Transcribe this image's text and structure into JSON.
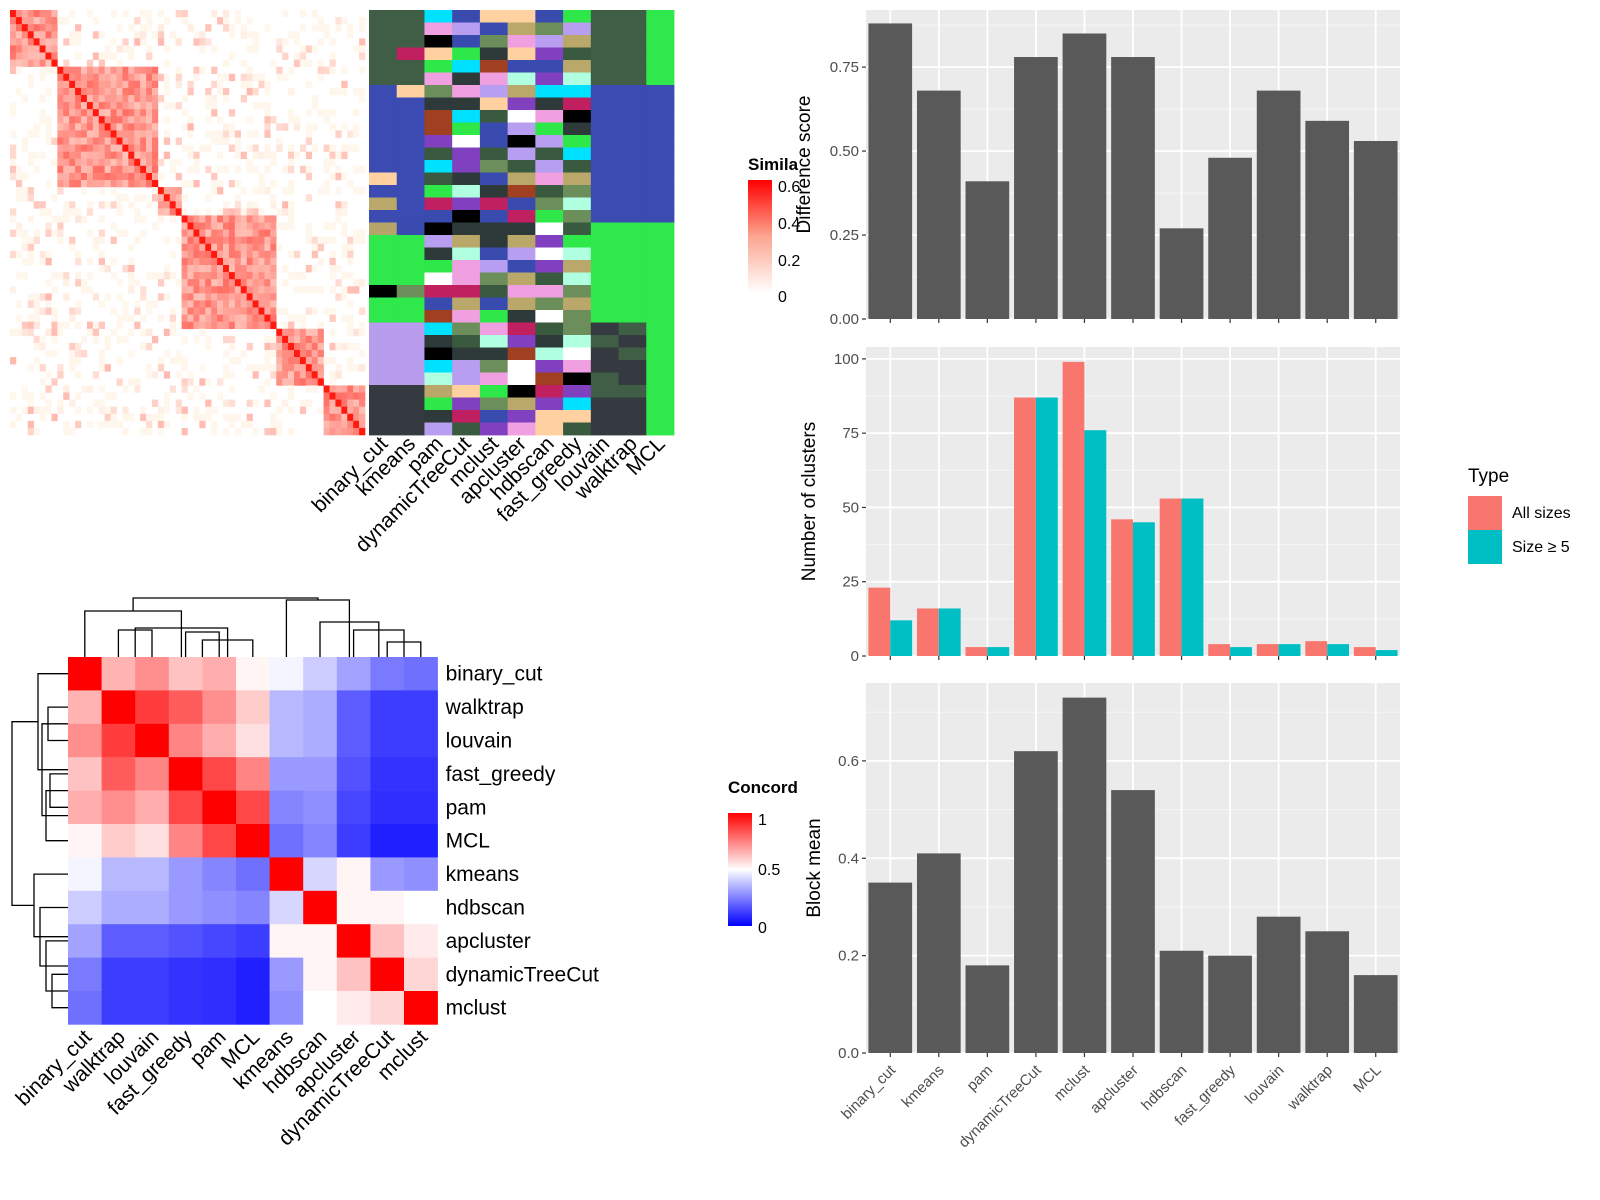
{
  "sim_legend": {
    "title": "Simila",
    "ticks": [
      "0.6",
      "0.4",
      "0.2",
      "0"
    ]
  },
  "conc_legend": {
    "title": "Concord",
    "ticks": [
      "1",
      "0.5",
      "0"
    ]
  },
  "type_legend": {
    "title": "Type",
    "items": [
      {
        "label": "All sizes",
        "color": "#f8766d"
      },
      {
        "label": "Size ≥ 5",
        "color": "#00bfc4"
      }
    ]
  },
  "chart_data": [
    {
      "type": "heatmap",
      "title": "",
      "columns": [
        "binary_cut",
        "kmeans",
        "pam",
        "dynamicTreeCut",
        "mclust",
        "apcluster",
        "hdbscan",
        "fast_greedy",
        "louvain",
        "walktrap",
        "MCL"
      ],
      "legend_title": "Simila",
      "legend_range": [
        0,
        0.6
      ],
      "legend_ticks": [
        0.6,
        0.4,
        0.2,
        0
      ]
    },
    {
      "type": "heatmap",
      "title": "",
      "rows": [
        "binary_cut",
        "walktrap",
        "louvain",
        "fast_greedy",
        "pam",
        "MCL",
        "kmeans",
        "hdbscan",
        "apcluster",
        "dynamicTreeCut",
        "mclust"
      ],
      "columns": [
        "binary_cut",
        "walktrap",
        "louvain",
        "fast_greedy",
        "pam",
        "MCL",
        "kmeans",
        "hdbscan",
        "apcluster",
        "dynamicTreeCut",
        "mclust"
      ],
      "values": [
        [
          1.0,
          0.65,
          0.72,
          0.62,
          0.66,
          0.52,
          0.48,
          0.4,
          0.32,
          0.24,
          0.22
        ],
        [
          0.65,
          1.0,
          0.88,
          0.82,
          0.72,
          0.6,
          0.36,
          0.34,
          0.18,
          0.12,
          0.12
        ],
        [
          0.72,
          0.88,
          1.0,
          0.74,
          0.66,
          0.56,
          0.36,
          0.34,
          0.18,
          0.12,
          0.12
        ],
        [
          0.62,
          0.82,
          0.74,
          1.0,
          0.86,
          0.74,
          0.3,
          0.3,
          0.16,
          0.1,
          0.1
        ],
        [
          0.66,
          0.72,
          0.66,
          0.86,
          1.0,
          0.86,
          0.26,
          0.28,
          0.14,
          0.09,
          0.09
        ],
        [
          0.52,
          0.6,
          0.56,
          0.74,
          0.86,
          1.0,
          0.22,
          0.26,
          0.12,
          0.06,
          0.06
        ],
        [
          0.48,
          0.36,
          0.36,
          0.3,
          0.26,
          0.22,
          1.0,
          0.42,
          0.52,
          0.3,
          0.28
        ],
        [
          0.4,
          0.34,
          0.34,
          0.3,
          0.28,
          0.26,
          0.42,
          1.0,
          0.52,
          0.52,
          0.5
        ],
        [
          0.32,
          0.18,
          0.18,
          0.16,
          0.14,
          0.12,
          0.52,
          0.52,
          1.0,
          0.62,
          0.54
        ],
        [
          0.24,
          0.12,
          0.12,
          0.1,
          0.09,
          0.06,
          0.3,
          0.52,
          0.62,
          1.0,
          0.58
        ],
        [
          0.22,
          0.12,
          0.12,
          0.1,
          0.09,
          0.06,
          0.28,
          0.5,
          0.54,
          0.58,
          1.0
        ]
      ],
      "legend_title": "Concord",
      "legend_range": [
        0,
        1
      ],
      "legend_ticks": [
        1,
        0.5,
        0
      ]
    },
    {
      "type": "bar",
      "categories": [
        "binary_cut",
        "kmeans",
        "pam",
        "dynamicTreeCut",
        "mclust",
        "apcluster",
        "hdbscan",
        "fast_greedy",
        "louvain",
        "walktrap",
        "MCL"
      ],
      "values": [
        0.88,
        0.68,
        0.41,
        0.78,
        0.85,
        0.78,
        0.27,
        0.48,
        0.68,
        0.59,
        0.53
      ],
      "ylabel": "Difference score",
      "xlabel": "",
      "ylim": [
        0,
        0.92
      ],
      "yticks": [
        "0.00",
        "0.25",
        "0.50",
        "0.75"
      ],
      "grid": true
    },
    {
      "type": "bar",
      "categories": [
        "binary_cut",
        "kmeans",
        "pam",
        "dynamicTreeCut",
        "mclust",
        "apcluster",
        "hdbscan",
        "fast_greedy",
        "louvain",
        "walktrap",
        "MCL"
      ],
      "series": [
        {
          "name": "All sizes",
          "values": [
            23,
            16,
            3,
            87,
            99,
            46,
            53,
            4,
            4,
            5,
            3
          ]
        },
        {
          "name": "Size ≥ 5",
          "values": [
            12,
            16,
            3,
            87,
            76,
            45,
            53,
            3,
            4,
            4,
            2
          ]
        }
      ],
      "ylabel": "Number of clusters",
      "xlabel": "",
      "ylim": [
        0,
        104
      ],
      "yticks": [
        "0",
        "25",
        "50",
        "75",
        "100"
      ],
      "legend_title": "Type",
      "legend": "right",
      "grid": true
    },
    {
      "type": "bar",
      "categories": [
        "binary_cut",
        "kmeans",
        "pam",
        "dynamicTreeCut",
        "mclust",
        "apcluster",
        "hdbscan",
        "fast_greedy",
        "louvain",
        "walktrap",
        "MCL"
      ],
      "values": [
        0.35,
        0.41,
        0.18,
        0.62,
        0.73,
        0.54,
        0.21,
        0.2,
        0.28,
        0.25,
        0.16
      ],
      "ylabel": "Block mean",
      "xlabel": "",
      "ylim": [
        0,
        0.76
      ],
      "yticks": [
        "0.0",
        "0.2",
        "0.4",
        "0.6"
      ],
      "grid": true
    }
  ]
}
